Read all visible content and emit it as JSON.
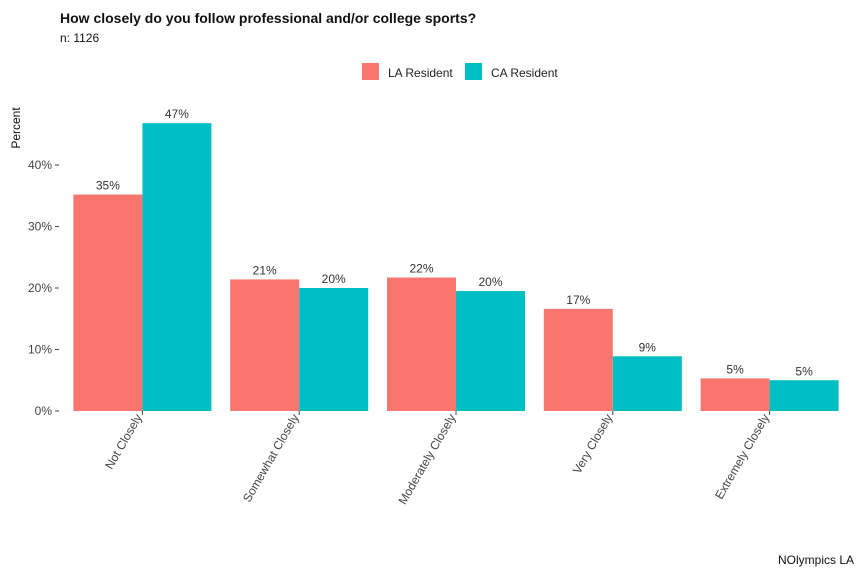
{
  "chart_data": {
    "type": "bar",
    "title": "How closely do you follow professional and/or college sports?",
    "subtitle": "n: 1126",
    "caption": "NOlympics LA",
    "ylabel": "Percent",
    "xlabel": "",
    "ylim": [
      0,
      50
    ],
    "yticks": [
      0,
      10,
      20,
      30,
      40
    ],
    "ytick_labels": [
      "0%",
      "10%",
      "20%",
      "30%",
      "40%"
    ],
    "legend_position": "top",
    "categories": [
      "Not Closely",
      "Somewhat Closely",
      "Moderately Closely",
      "Very Closely",
      "Extremely Closely"
    ],
    "series": [
      {
        "name": "LA Resident",
        "color": "#F8766D",
        "values": [
          35.2,
          21.4,
          21.7,
          16.6,
          5.3
        ],
        "labels": [
          "35%",
          "21%",
          "22%",
          "17%",
          "5%"
        ]
      },
      {
        "name": "CA Resident",
        "color": "#00BFC4",
        "values": [
          46.8,
          20.0,
          19.5,
          8.9,
          5.0
        ],
        "labels": [
          "47%",
          "20%",
          "20%",
          "9%",
          "5%"
        ]
      }
    ]
  }
}
